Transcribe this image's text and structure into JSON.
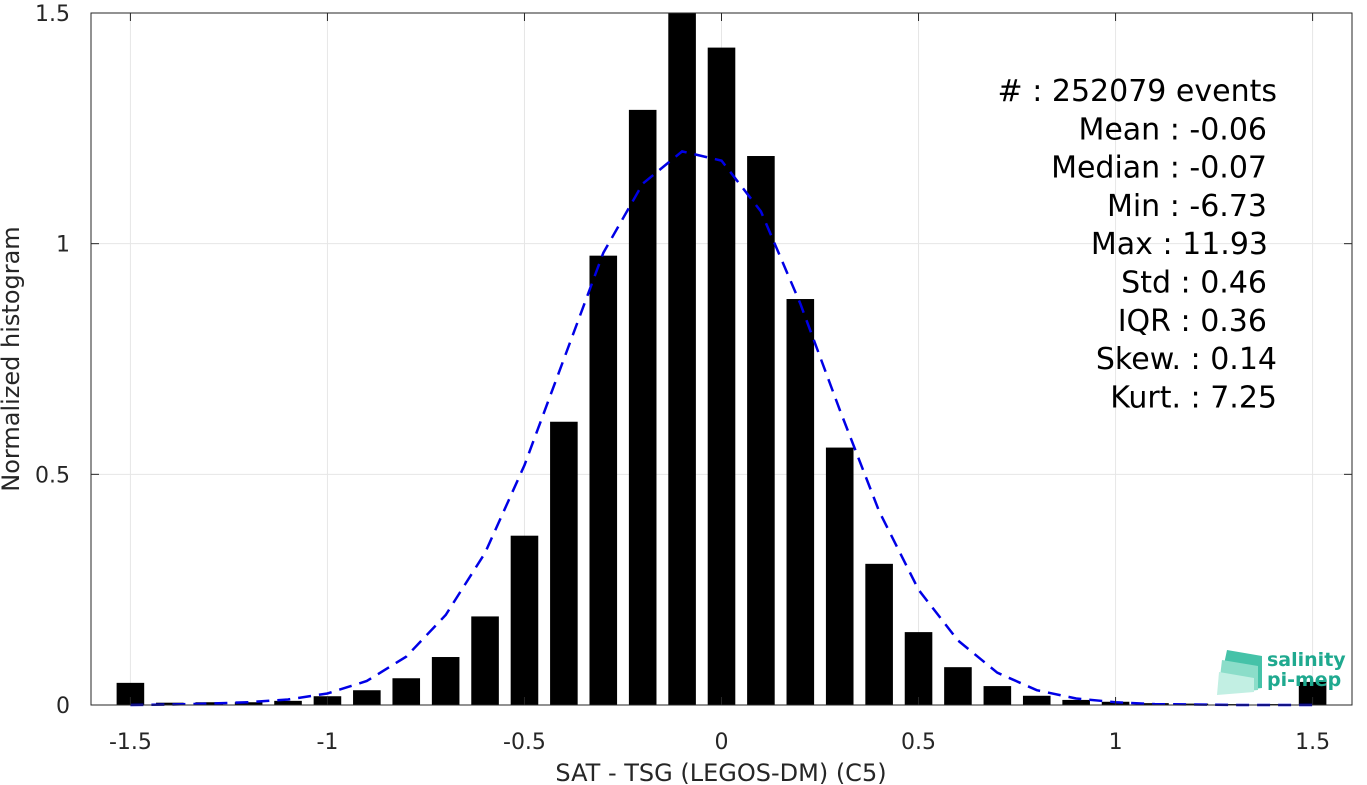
{
  "chart_data": {
    "type": "bar",
    "xlabel": "SAT - TSG (LEGOS-DM) (C5)",
    "ylabel": "Normalized histogram",
    "xlim": [
      -1.6,
      1.6
    ],
    "ylim": [
      0,
      1.5
    ],
    "xticks": [
      -1.5,
      -1,
      -0.5,
      0,
      0.5,
      1,
      1.5
    ],
    "xtick_labels": [
      "-1.5",
      "-1",
      "-0.5",
      "0",
      "0.5",
      "1",
      "1.5"
    ],
    "yticks": [
      0,
      0.5,
      1,
      1.5
    ],
    "ytick_labels": [
      "0",
      "0.5",
      "1",
      "1.5"
    ],
    "grid": true,
    "bar_color": "#000000",
    "bar_width": 0.07,
    "bars": {
      "x": [
        -1.5,
        -1.4,
        -1.3,
        -1.2,
        -1.1,
        -1.0,
        -0.9,
        -0.8,
        -0.7,
        -0.6,
        -0.5,
        -0.4,
        -0.3,
        -0.2,
        -0.1,
        0.0,
        0.1,
        0.2,
        0.3,
        0.4,
        0.5,
        0.6,
        0.7,
        0.8,
        0.9,
        1.0,
        1.1,
        1.2,
        1.3,
        1.4,
        1.5
      ],
      "values": [
        0.048,
        0.005,
        0.006,
        0.006,
        0.009,
        0.019,
        0.032,
        0.058,
        0.104,
        0.192,
        0.367,
        0.614,
        0.974,
        1.29,
        1.5,
        1.425,
        1.19,
        0.88,
        0.558,
        0.306,
        0.158,
        0.082,
        0.041,
        0.02,
        0.011,
        0.007,
        0.004,
        0.003,
        0.002,
        0.002,
        0.05
      ]
    },
    "series": [
      {
        "type": "line",
        "style": "dashed",
        "color": "#0000e6",
        "x": [
          -1.5,
          -1.4,
          -1.3,
          -1.2,
          -1.1,
          -1.0,
          -0.9,
          -0.8,
          -0.7,
          -0.6,
          -0.5,
          -0.4,
          -0.3,
          -0.2,
          -0.1,
          0.0,
          0.1,
          0.2,
          0.3,
          0.4,
          0.5,
          0.6,
          0.7,
          0.8,
          0.9,
          1.0,
          1.1,
          1.2,
          1.3,
          1.4,
          1.5
        ],
        "values": [
          0.0,
          0.001,
          0.003,
          0.006,
          0.012,
          0.025,
          0.052,
          0.105,
          0.195,
          0.33,
          0.52,
          0.75,
          0.98,
          1.13,
          1.2,
          1.18,
          1.07,
          0.87,
          0.64,
          0.42,
          0.25,
          0.14,
          0.07,
          0.032,
          0.014,
          0.006,
          0.002,
          0.001,
          0.0,
          0.0,
          0.0
        ]
      }
    ],
    "annotations": [
      "#  : 252079 events",
      "Mean : -0.06",
      "Median : -0.07",
      "Min : -6.73",
      "Max : 11.93",
      "Std : 0.46",
      "IQR : 0.36",
      "Skew. : 0.14",
      "Kurt. : 7.25"
    ]
  },
  "logo": {
    "line1": "salinity",
    "line2": "pi-mep",
    "color": "#1fa98f"
  }
}
